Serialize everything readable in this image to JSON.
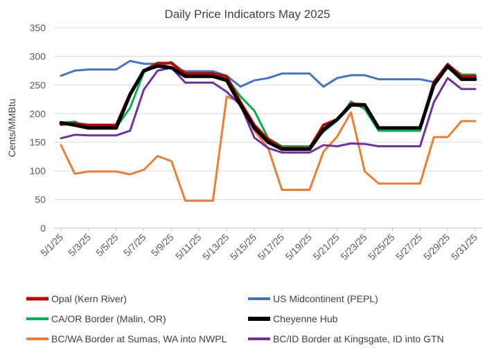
{
  "chart_data": {
    "type": "line",
    "title": "Daily Price Indicators May 2025",
    "ylabel": "Cents/MMBtu",
    "xlabel": "",
    "ylim": [
      0,
      350
    ],
    "yticks": [
      0,
      50,
      100,
      150,
      200,
      250,
      300,
      350
    ],
    "grid": true,
    "legend_position": "bottom",
    "x": [
      "5/1/25",
      "5/2/25",
      "5/3/25",
      "5/4/25",
      "5/5/25",
      "5/6/25",
      "5/7/25",
      "5/8/25",
      "5/9/25",
      "5/10/25",
      "5/11/25",
      "5/12/25",
      "5/13/25",
      "5/14/25",
      "5/15/25",
      "5/16/25",
      "5/17/25",
      "5/18/25",
      "5/19/25",
      "5/20/25",
      "5/21/25",
      "5/22/25",
      "5/23/25",
      "5/24/25",
      "5/25/25",
      "5/26/25",
      "5/27/25",
      "5/28/25",
      "5/29/25",
      "5/30/25",
      "5/31/25"
    ],
    "xtick_labels": [
      "5/1/25",
      "5/3/25",
      "5/5/25",
      "5/7/25",
      "5/9/25",
      "5/11/25",
      "5/13/25",
      "5/15/25",
      "5/17/25",
      "5/19/25",
      "5/21/25",
      "5/23/25",
      "5/25/25",
      "5/27/25",
      "5/29/25",
      "5/31/25"
    ],
    "series": [
      {
        "name": "Opal (Kern River)",
        "color": "#c00000",
        "width": 4,
        "values": [
          181,
          183,
          180,
          180,
          180,
          235,
          275,
          288,
          288,
          270,
          270,
          270,
          265,
          220,
          180,
          155,
          140,
          140,
          140,
          180,
          190,
          217,
          216,
          175,
          175,
          175,
          175,
          255,
          286,
          265,
          265
        ]
      },
      {
        "name": "US Midcontinent (PEPL)",
        "color": "#4472c4",
        "width": 3,
        "values": [
          266,
          275,
          277,
          277,
          277,
          292,
          287,
          287,
          281,
          274,
          274,
          274,
          266,
          247,
          258,
          262,
          270,
          270,
          270,
          247,
          262,
          267,
          267,
          260,
          260,
          260,
          260,
          255,
          280,
          260,
          260
        ]
      },
      {
        "name": "CA/OR Border (Malin, OR)",
        "color": "#00b050",
        "width": 3,
        "values": [
          184,
          186,
          176,
          176,
          176,
          210,
          272,
          285,
          290,
          270,
          270,
          270,
          262,
          230,
          205,
          157,
          143,
          143,
          143,
          168,
          188,
          221,
          208,
          170,
          170,
          170,
          170,
          250,
          285,
          268,
          268
        ]
      },
      {
        "name": "Cheyenne Hub",
        "color": "#000000",
        "width": 5,
        "values": [
          184,
          180,
          175,
          175,
          175,
          233,
          275,
          283,
          280,
          265,
          265,
          265,
          258,
          215,
          175,
          150,
          138,
          138,
          138,
          172,
          190,
          215,
          215,
          175,
          175,
          175,
          175,
          250,
          283,
          260,
          260
        ]
      },
      {
        "name": "BC/WA Border at Sumas, WA into NWPL",
        "color": "#ed7d31",
        "width": 3,
        "values": [
          145,
          95,
          99,
          99,
          99,
          94,
          102,
          126,
          117,
          48,
          48,
          48,
          230,
          220,
          170,
          140,
          67,
          67,
          67,
          133,
          160,
          202,
          99,
          78,
          78,
          78,
          78,
          159,
          159,
          187,
          187
        ]
      },
      {
        "name": "BC/ID Border at Kingsgate, ID into GTN",
        "color": "#7030a0",
        "width": 3,
        "values": [
          157,
          163,
          162,
          162,
          162,
          170,
          242,
          275,
          280,
          254,
          254,
          254,
          238,
          215,
          158,
          140,
          132,
          132,
          132,
          145,
          143,
          148,
          147,
          143,
          143,
          143,
          143,
          220,
          262,
          243,
          243
        ]
      }
    ],
    "legend_order": [
      0,
      1,
      2,
      3,
      4,
      5
    ]
  }
}
